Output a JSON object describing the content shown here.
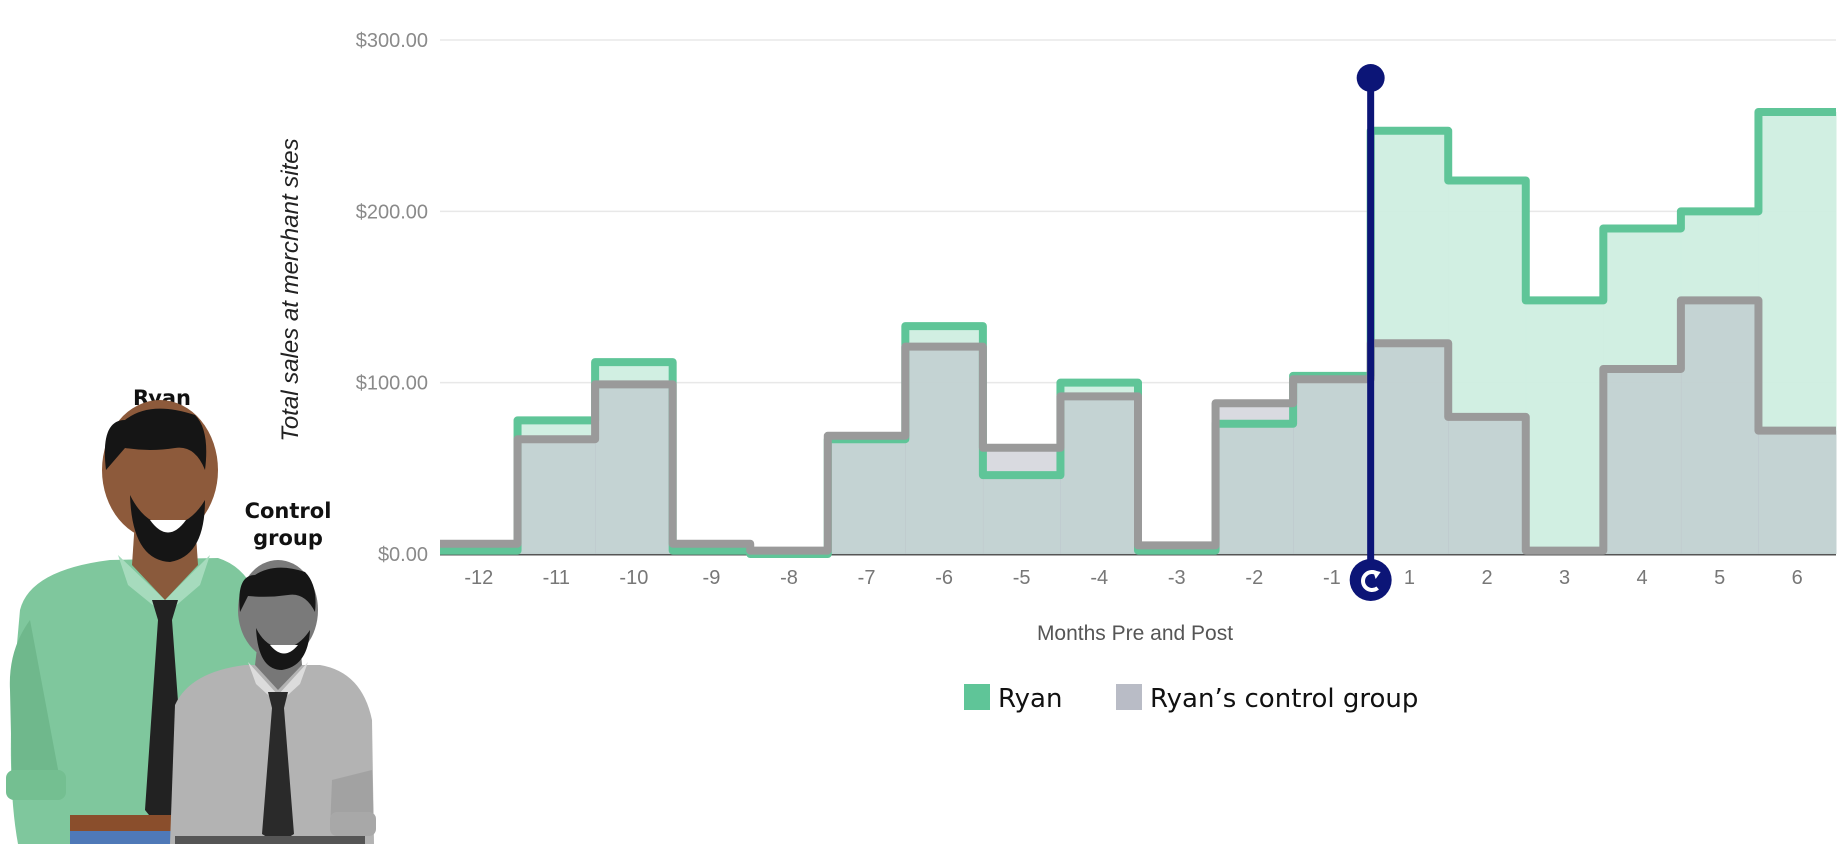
{
  "chart_data": {
    "type": "step-area",
    "x": [
      -12,
      -11,
      -10,
      -9,
      -8,
      -7,
      -6,
      -5,
      -4,
      -3,
      -2,
      -1,
      1,
      2,
      3,
      4,
      5,
      6
    ],
    "xlabel": "Months Pre and Post",
    "ylabel": "Total sales at merchant sites",
    "ylim": [
      0,
      300
    ],
    "y_ticks": [
      "$0.00",
      "$100.00",
      "$200.00",
      "$300.00"
    ],
    "y_tick_values": [
      0,
      100,
      200,
      300
    ],
    "grid": true,
    "series": [
      {
        "name": "Ryan",
        "color": "#5fc598",
        "fill": "#cfeee0",
        "values": [
          2,
          78,
          112,
          2,
          0,
          67,
          133,
          46,
          100,
          2,
          76,
          104,
          247,
          218,
          148,
          190,
          200,
          258
        ]
      },
      {
        "name": "Ryan’s control group",
        "color": "#9a9a9a",
        "fill": "#b9bcc6",
        "values": [
          6,
          67,
          99,
          6,
          2,
          69,
          121,
          62,
          92,
          5,
          88,
          102,
          123,
          80,
          2,
          108,
          148,
          72
        ]
      }
    ],
    "event_marker": {
      "between": [
        -1,
        1
      ],
      "color": "#0c1577"
    },
    "legend": {
      "position": "bottom-center"
    }
  },
  "figures": {
    "ryan_label": "Ryan",
    "control_label_line1": "Control",
    "control_label_line2": "group"
  }
}
